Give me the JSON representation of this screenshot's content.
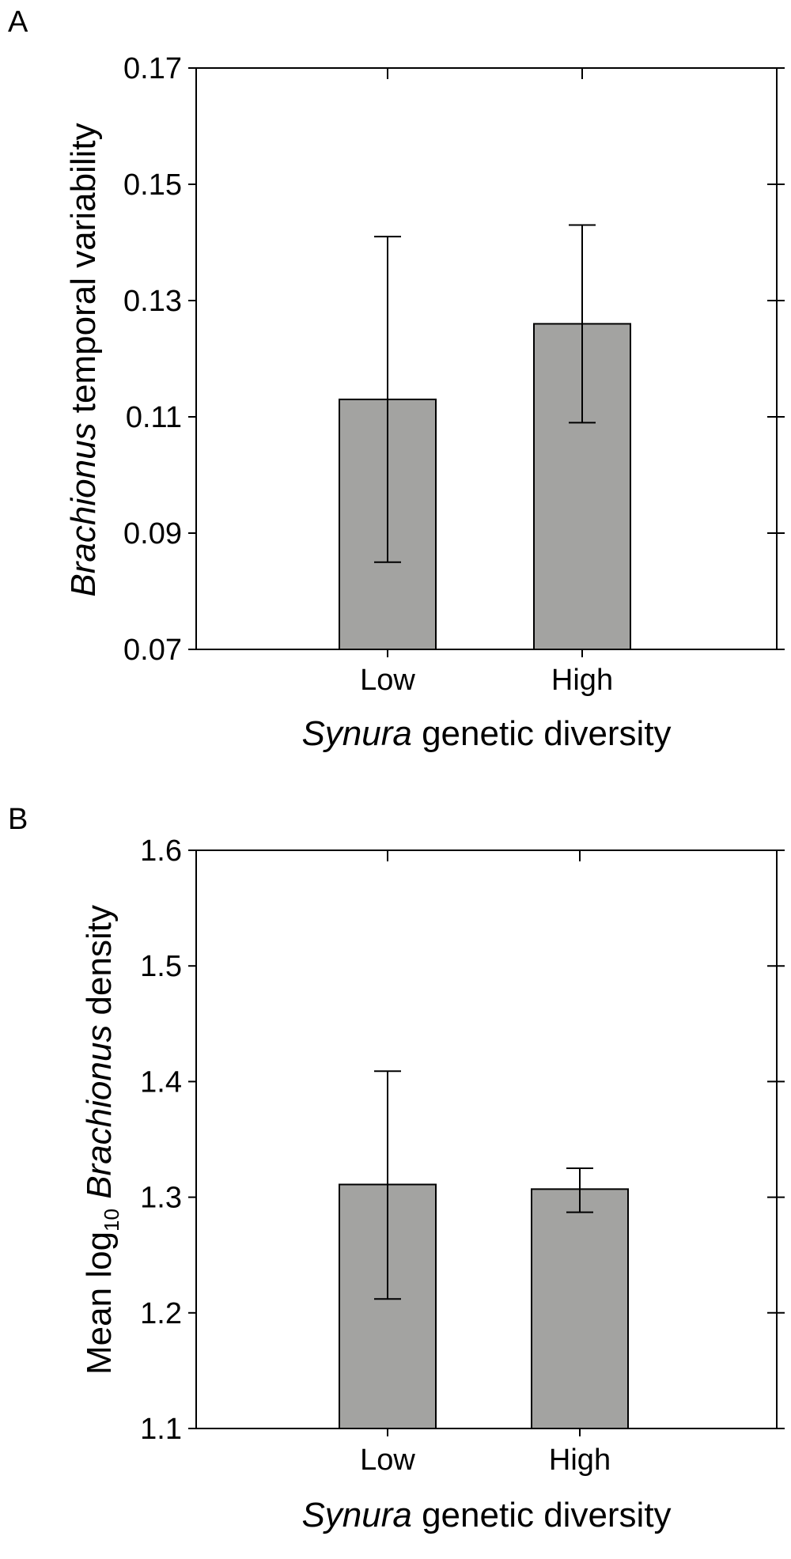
{
  "chart_data": [
    {
      "panel": "A",
      "type": "bar",
      "categories": [
        "Low",
        "High"
      ],
      "values": [
        0.113,
        0.126
      ],
      "error_low": [
        0.085,
        0.109
      ],
      "error_high": [
        0.141,
        0.143
      ],
      "ylim": [
        0.07,
        0.17
      ],
      "yticks": [
        0.07,
        0.09,
        0.11,
        0.13,
        0.15,
        0.17
      ],
      "ytick_labels": [
        "0.07",
        "0.09",
        "0.11",
        "0.13",
        "0.15",
        "0.17"
      ],
      "ylabel": {
        "italic": "Brachionus",
        "rest": " temporal variability"
      },
      "xlabel": {
        "italic": "Synura",
        "rest": " genetic diversity"
      },
      "bar_color": "#a3a3a1"
    },
    {
      "panel": "B",
      "type": "bar",
      "categories": [
        "Low",
        "High"
      ],
      "values": [
        1.311,
        1.307
      ],
      "error_low": [
        1.212,
        1.287
      ],
      "error_high": [
        1.409,
        1.325
      ],
      "ylim": [
        1.1,
        1.6
      ],
      "yticks": [
        1.1,
        1.2,
        1.3,
        1.4,
        1.5,
        1.6
      ],
      "ytick_labels": [
        "1.1",
        "1.2",
        "1.3",
        "1.4",
        "1.5",
        "1.6"
      ],
      "ylabel": {
        "prefix": "Mean log",
        "sub": "10",
        "italic": " Brachionus",
        "rest": " density"
      },
      "xlabel": {
        "italic": "Synura",
        "rest": " genetic diversity"
      },
      "bar_color": "#a3a3a1"
    }
  ]
}
